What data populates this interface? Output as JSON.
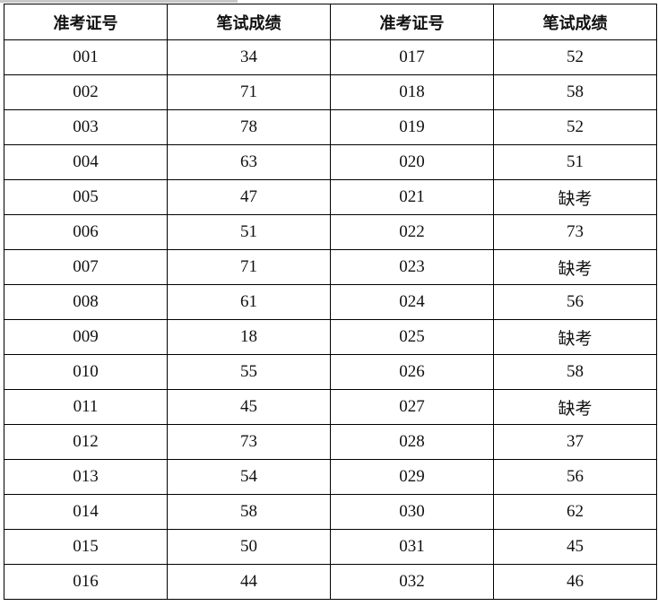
{
  "table": {
    "headers": [
      "准考证号",
      "笔试成绩",
      "准考证号",
      "笔试成绩"
    ],
    "rows": [
      [
        "001",
        "34",
        "017",
        "52"
      ],
      [
        "002",
        "71",
        "018",
        "58"
      ],
      [
        "003",
        "78",
        "019",
        "52"
      ],
      [
        "004",
        "63",
        "020",
        "51"
      ],
      [
        "005",
        "47",
        "021",
        "缺考"
      ],
      [
        "006",
        "51",
        "022",
        "73"
      ],
      [
        "007",
        "71",
        "023",
        "缺考"
      ],
      [
        "008",
        "61",
        "024",
        "56"
      ],
      [
        "009",
        "18",
        "025",
        "缺考"
      ],
      [
        "010",
        "55",
        "026",
        "58"
      ],
      [
        "011",
        "45",
        "027",
        "缺考"
      ],
      [
        "012",
        "73",
        "028",
        "37"
      ],
      [
        "013",
        "54",
        "029",
        "56"
      ],
      [
        "014",
        "58",
        "030",
        "62"
      ],
      [
        "015",
        "50",
        "031",
        "45"
      ],
      [
        "016",
        "44",
        "032",
        "46"
      ]
    ]
  }
}
